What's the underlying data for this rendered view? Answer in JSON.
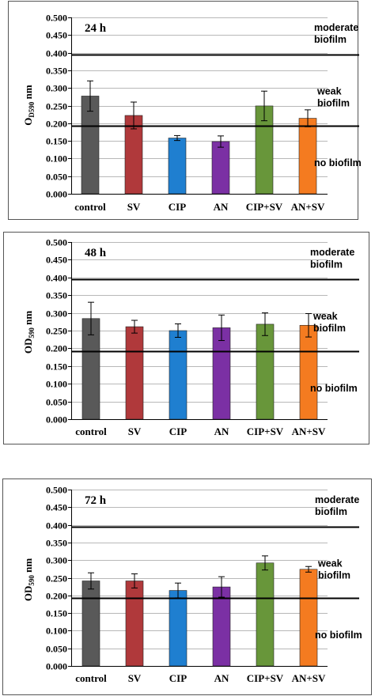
{
  "chart_data": [
    {
      "type": "bar",
      "panel_label": "24 h",
      "ylabel_main": "O",
      "ylabel_sub": "D590",
      "ylabel_unit": " nm",
      "categories": [
        "control",
        "SV",
        "CIP",
        "AN",
        "CIP+SV",
        "AN+SV"
      ],
      "values": [
        0.277,
        0.222,
        0.158,
        0.148,
        0.249,
        0.214
      ],
      "errors": [
        0.043,
        0.038,
        0.007,
        0.016,
        0.042,
        0.024
      ],
      "colors": [
        "#595959",
        "#b0393b",
        "#1f7fd0",
        "#7b30a4",
        "#68963a",
        "#f47b20"
      ],
      "ylim": [
        0,
        0.5
      ],
      "yticks": [
        "0.000",
        "0.050",
        "0.100",
        "0.150",
        "0.200",
        "0.250",
        "0.300",
        "0.350",
        "0.400",
        "0.450",
        "0.500"
      ],
      "threshold_lines": [
        0.395,
        0.193
      ],
      "zone_labels": [
        "moderate",
        "biofilm",
        "weak",
        "biofilm",
        "no biofilm"
      ],
      "grid": true
    },
    {
      "type": "bar",
      "panel_label": "48 h",
      "ylabel_main": "OD",
      "ylabel_sub": "590",
      "ylabel_unit": " nm",
      "categories": [
        "control",
        "SV",
        "CIP",
        "AN",
        "CIP+SV",
        "AN+SV"
      ],
      "values": [
        0.284,
        0.261,
        0.25,
        0.258,
        0.268,
        0.265
      ],
      "errors": [
        0.046,
        0.018,
        0.019,
        0.036,
        0.032,
        0.033
      ],
      "colors": [
        "#595959",
        "#b0393b",
        "#1f7fd0",
        "#7b30a4",
        "#68963a",
        "#f47b20"
      ],
      "ylim": [
        0,
        0.5
      ],
      "yticks": [
        "0.000",
        "0.050",
        "0.100",
        "0.150",
        "0.200",
        "0.250",
        "0.300",
        "0.350",
        "0.400",
        "0.450",
        "0.500"
      ],
      "threshold_lines": [
        0.395,
        0.193
      ],
      "zone_labels": [
        "moderate",
        "biofilm",
        "weak",
        "biofilm",
        "no biofilm"
      ],
      "grid": true
    },
    {
      "type": "bar",
      "panel_label": "72 h",
      "ylabel_main": "OD",
      "ylabel_sub": "590",
      "ylabel_unit": " nm",
      "categories": [
        "control",
        "SV",
        "CIP",
        "AN",
        "CIP+SV",
        "AN+SV"
      ],
      "values": [
        0.241,
        0.241,
        0.214,
        0.224,
        0.292,
        0.274
      ],
      "errors": [
        0.023,
        0.02,
        0.021,
        0.029,
        0.02,
        0.008
      ],
      "colors": [
        "#595959",
        "#b0393b",
        "#1f7fd0",
        "#7b30a4",
        "#68963a",
        "#f47b20"
      ],
      "ylim": [
        0,
        0.5
      ],
      "yticks": [
        "0.000",
        "0.050",
        "0.100",
        "0.150",
        "0.200",
        "0.250",
        "0.300",
        "0.350",
        "0.400",
        "0.450",
        "0.500"
      ],
      "threshold_lines": [
        0.395,
        0.193
      ],
      "zone_labels": [
        "moderate",
        "biofilm",
        "weak",
        "biofilm",
        "no biofilm"
      ],
      "grid": true
    }
  ]
}
